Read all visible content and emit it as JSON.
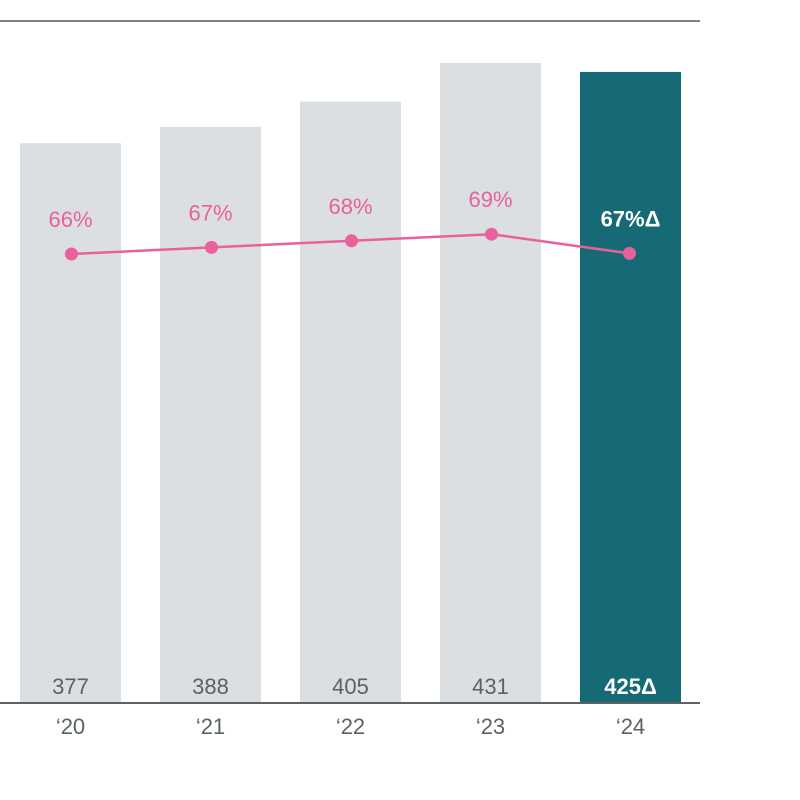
{
  "chart_data": {
    "type": "bar",
    "categories": [
      "‘20",
      "‘21",
      "‘22",
      "‘23",
      "‘24"
    ],
    "series": [
      {
        "values": [
          377,
          388,
          405,
          431,
          425
        ],
        "value_labels": [
          "377",
          "388",
          "405",
          "431",
          "425Δ"
        ]
      },
      {
        "type": "line",
        "values": [
          66,
          67,
          68,
          69,
          67
        ],
        "value_labels": [
          "66%",
          "67%",
          "68%",
          "69%",
          "67%Δ"
        ]
      }
    ],
    "highlight_index": 4,
    "colors": {
      "bar": "#dcdfe1",
      "bar_highlight": "#166a75",
      "line": "#e8609c",
      "bar_label": "#5b6266",
      "highlight_label": "#ffffff",
      "axis": "#5b6266",
      "top_rule": "#000000"
    },
    "grid": false
  }
}
